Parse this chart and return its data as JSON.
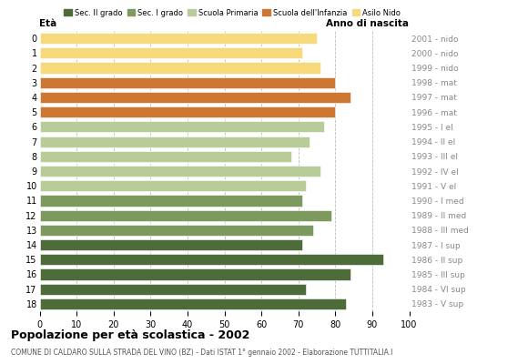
{
  "ages": [
    0,
    1,
    2,
    3,
    4,
    5,
    6,
    7,
    8,
    9,
    10,
    11,
    12,
    13,
    14,
    15,
    16,
    17,
    18
  ],
  "values": [
    75,
    71,
    76,
    80,
    84,
    80,
    77,
    73,
    68,
    76,
    72,
    71,
    79,
    74,
    71,
    93,
    84,
    72,
    83
  ],
  "years": [
    "2001 - nido",
    "2000 - nido",
    "1999 - nido",
    "1998 - mat",
    "1997 - mat",
    "1996 - mat",
    "1995 - I el",
    "1994 - II el",
    "1993 - III el",
    "1992 - IV el",
    "1991 - V el",
    "1990 - I med",
    "1989 - II med",
    "1988 - III med",
    "1987 - I sup",
    "1986 - II sup",
    "1985 - III sup",
    "1984 - VI sup",
    "1983 - V sup"
  ],
  "colors": [
    "#f5d97a",
    "#f5d97a",
    "#f5d97a",
    "#cc7733",
    "#cc7733",
    "#cc7733",
    "#b8cc99",
    "#b8cc99",
    "#b8cc99",
    "#b8cc99",
    "#b8cc99",
    "#7d9a5e",
    "#7d9a5e",
    "#7d9a5e",
    "#4e6b3a",
    "#4e6b3a",
    "#4e6b3a",
    "#4e6b3a",
    "#4e6b3a"
  ],
  "legend_labels": [
    "Sec. II grado",
    "Sec. I grado",
    "Scuola Primaria",
    "Scuola dell'Infanzia",
    "Asilo Nido"
  ],
  "legend_colors": [
    "#4e6b3a",
    "#7d9a5e",
    "#b8cc99",
    "#cc7733",
    "#f5d97a"
  ],
  "title": "Popolazione per età scolastica - 2002",
  "subtitle": "COMUNE DI CALDARO SULLA STRADA DEL VINO (BZ) - Dati ISTAT 1° gennaio 2002 - Elaborazione TUTTITALIA.I",
  "xlabel_eta": "Età",
  "xlabel_anno": "Anno di nascita",
  "xlim": [
    0,
    100
  ],
  "xticks": [
    0,
    10,
    20,
    30,
    40,
    50,
    60,
    70,
    80,
    90,
    100
  ],
  "bar_height": 0.75,
  "background_color": "#ffffff",
  "grid_color": "#bbbbbb"
}
